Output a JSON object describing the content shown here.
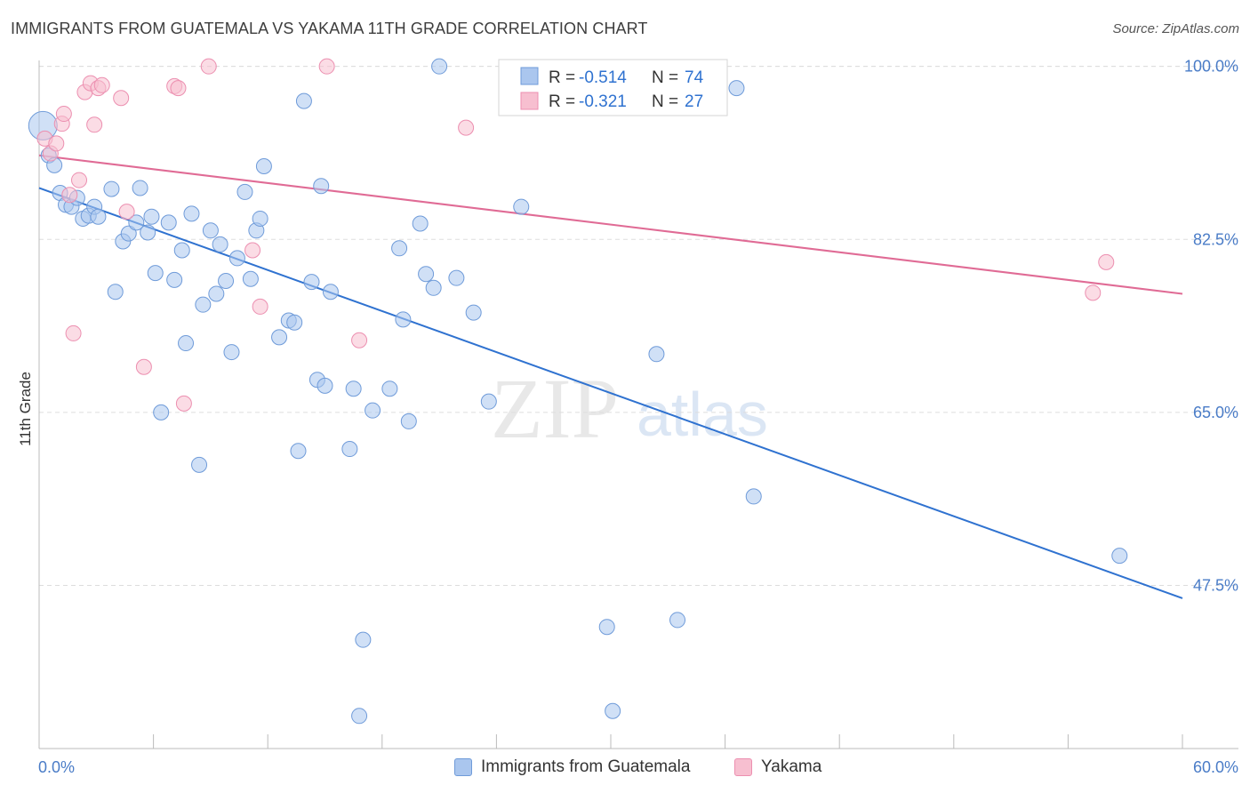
{
  "title": "IMMIGRANTS FROM GUATEMALA VS YAKAMA 11TH GRADE CORRELATION CHART",
  "source": "Source: ZipAtlas.com",
  "watermark": {
    "part1": "ZIP",
    "part2": "atlas"
  },
  "colors": {
    "blue_fill": "#aac6ee",
    "blue_stroke": "#6f9bd9",
    "blue_line": "#2f72d0",
    "pink_fill": "#f7bfd0",
    "pink_stroke": "#ec8fb0",
    "pink_line": "#e06b95",
    "tick_text": "#4a7cc7",
    "grid": "#dddddd"
  },
  "legend": {
    "rows": [
      {
        "r_label": "R =",
        "r_value": "-0.514",
        "n_label": "N =",
        "n_value": "74"
      },
      {
        "r_label": "R =",
        "r_value": "-0.321",
        "n_label": "N =",
        "n_value": "27"
      }
    ]
  },
  "bottom_legend": {
    "series1": "Immigrants from Guatemala",
    "series2": "Yakama"
  },
  "chart_data": {
    "type": "scatter",
    "xlabel": "",
    "ylabel": "11th Grade",
    "xlim": [
      0,
      60
    ],
    "ylim": [
      31,
      101.5
    ],
    "x_tick_labels": [
      "0.0%",
      "60.0%"
    ],
    "y_ticks": [
      100.0,
      82.5,
      65.0,
      47.5
    ],
    "y_tick_labels": [
      "100.0%",
      "82.5%",
      "65.0%",
      "47.5%"
    ],
    "grid": "horizontal dashed",
    "legend_position": "top-center",
    "series": [
      {
        "name": "Immigrants from Guatemala",
        "color": "blue",
        "r": -0.514,
        "n": 74,
        "trend": {
          "x": [
            0,
            60
          ],
          "y": [
            87.7,
            46.2
          ]
        },
        "points": [
          {
            "x": 0.2,
            "y": 94.0,
            "big": true
          },
          {
            "x": 0.5,
            "y": 91.0
          },
          {
            "x": 0.8,
            "y": 90.0
          },
          {
            "x": 1.1,
            "y": 87.2
          },
          {
            "x": 1.4,
            "y": 86.0
          },
          {
            "x": 1.7,
            "y": 85.8
          },
          {
            "x": 2.0,
            "y": 86.7
          },
          {
            "x": 2.3,
            "y": 84.6
          },
          {
            "x": 2.6,
            "y": 84.9
          },
          {
            "x": 2.9,
            "y": 85.8
          },
          {
            "x": 3.1,
            "y": 84.8
          },
          {
            "x": 3.8,
            "y": 87.6
          },
          {
            "x": 4.0,
            "y": 77.2
          },
          {
            "x": 4.4,
            "y": 82.3
          },
          {
            "x": 4.7,
            "y": 83.1
          },
          {
            "x": 5.1,
            "y": 84.2
          },
          {
            "x": 5.3,
            "y": 87.7
          },
          {
            "x": 5.7,
            "y": 83.2
          },
          {
            "x": 5.9,
            "y": 84.8
          },
          {
            "x": 6.1,
            "y": 79.1
          },
          {
            "x": 6.4,
            "y": 65.0
          },
          {
            "x": 6.8,
            "y": 84.2
          },
          {
            "x": 7.1,
            "y": 78.4
          },
          {
            "x": 7.5,
            "y": 81.4
          },
          {
            "x": 7.7,
            "y": 72.0
          },
          {
            "x": 8.0,
            "y": 85.1
          },
          {
            "x": 8.4,
            "y": 59.7
          },
          {
            "x": 8.6,
            "y": 75.9
          },
          {
            "x": 9.0,
            "y": 83.4
          },
          {
            "x": 9.3,
            "y": 77.0
          },
          {
            "x": 9.5,
            "y": 82.0
          },
          {
            "x": 9.8,
            "y": 78.3
          },
          {
            "x": 10.1,
            "y": 71.1
          },
          {
            "x": 10.4,
            "y": 80.6
          },
          {
            "x": 10.8,
            "y": 87.3
          },
          {
            "x": 11.1,
            "y": 78.5
          },
          {
            "x": 11.4,
            "y": 83.4
          },
          {
            "x": 11.6,
            "y": 84.6
          },
          {
            "x": 11.8,
            "y": 89.9
          },
          {
            "x": 12.6,
            "y": 72.6
          },
          {
            "x": 13.1,
            "y": 74.3
          },
          {
            "x": 13.4,
            "y": 74.1
          },
          {
            "x": 13.6,
            "y": 61.1
          },
          {
            "x": 13.9,
            "y": 96.5
          },
          {
            "x": 14.3,
            "y": 78.2
          },
          {
            "x": 14.6,
            "y": 68.3
          },
          {
            "x": 14.8,
            "y": 87.9
          },
          {
            "x": 15.0,
            "y": 67.7
          },
          {
            "x": 15.3,
            "y": 77.2
          },
          {
            "x": 16.3,
            "y": 61.3
          },
          {
            "x": 16.5,
            "y": 67.4
          },
          {
            "x": 16.8,
            "y": 34.3
          },
          {
            "x": 17.0,
            "y": 42.0
          },
          {
            "x": 17.5,
            "y": 65.2
          },
          {
            "x": 18.4,
            "y": 67.4
          },
          {
            "x": 18.9,
            "y": 81.6
          },
          {
            "x": 19.1,
            "y": 74.4
          },
          {
            "x": 19.4,
            "y": 64.1
          },
          {
            "x": 20.0,
            "y": 84.1
          },
          {
            "x": 20.3,
            "y": 79.0
          },
          {
            "x": 20.7,
            "y": 77.6
          },
          {
            "x": 21.0,
            "y": 100.0
          },
          {
            "x": 21.9,
            "y": 78.6
          },
          {
            "x": 22.8,
            "y": 75.1
          },
          {
            "x": 23.6,
            "y": 66.1
          },
          {
            "x": 25.3,
            "y": 85.8
          },
          {
            "x": 29.8,
            "y": 43.3
          },
          {
            "x": 30.1,
            "y": 34.8
          },
          {
            "x": 32.4,
            "y": 70.9
          },
          {
            "x": 33.5,
            "y": 44.0
          },
          {
            "x": 36.6,
            "y": 97.8
          },
          {
            "x": 37.5,
            "y": 56.5
          },
          {
            "x": 56.7,
            "y": 50.5
          }
        ]
      },
      {
        "name": "Yakama",
        "color": "pink",
        "r": -0.321,
        "n": 27,
        "trend": {
          "x": [
            0,
            60
          ],
          "y": [
            91.0,
            77.0
          ]
        },
        "points": [
          {
            "x": 0.3,
            "y": 92.7
          },
          {
            "x": 0.6,
            "y": 91.2
          },
          {
            "x": 0.9,
            "y": 92.2
          },
          {
            "x": 1.2,
            "y": 94.2
          },
          {
            "x": 1.3,
            "y": 95.2
          },
          {
            "x": 1.6,
            "y": 87.0
          },
          {
            "x": 1.8,
            "y": 73.0
          },
          {
            "x": 2.1,
            "y": 88.5
          },
          {
            "x": 2.4,
            "y": 97.4
          },
          {
            "x": 2.7,
            "y": 98.3
          },
          {
            "x": 2.9,
            "y": 94.1
          },
          {
            "x": 3.1,
            "y": 97.8
          },
          {
            "x": 3.3,
            "y": 98.1
          },
          {
            "x": 4.3,
            "y": 96.8
          },
          {
            "x": 4.6,
            "y": 85.3
          },
          {
            "x": 5.5,
            "y": 69.6
          },
          {
            "x": 7.1,
            "y": 98.0
          },
          {
            "x": 7.3,
            "y": 97.8
          },
          {
            "x": 7.6,
            "y": 65.9
          },
          {
            "x": 8.9,
            "y": 100.0
          },
          {
            "x": 11.2,
            "y": 81.4
          },
          {
            "x": 11.6,
            "y": 75.7
          },
          {
            "x": 15.1,
            "y": 100.0
          },
          {
            "x": 16.8,
            "y": 72.3
          },
          {
            "x": 22.4,
            "y": 93.8
          },
          {
            "x": 55.3,
            "y": 77.1
          },
          {
            "x": 56.0,
            "y": 80.2
          }
        ]
      }
    ]
  }
}
